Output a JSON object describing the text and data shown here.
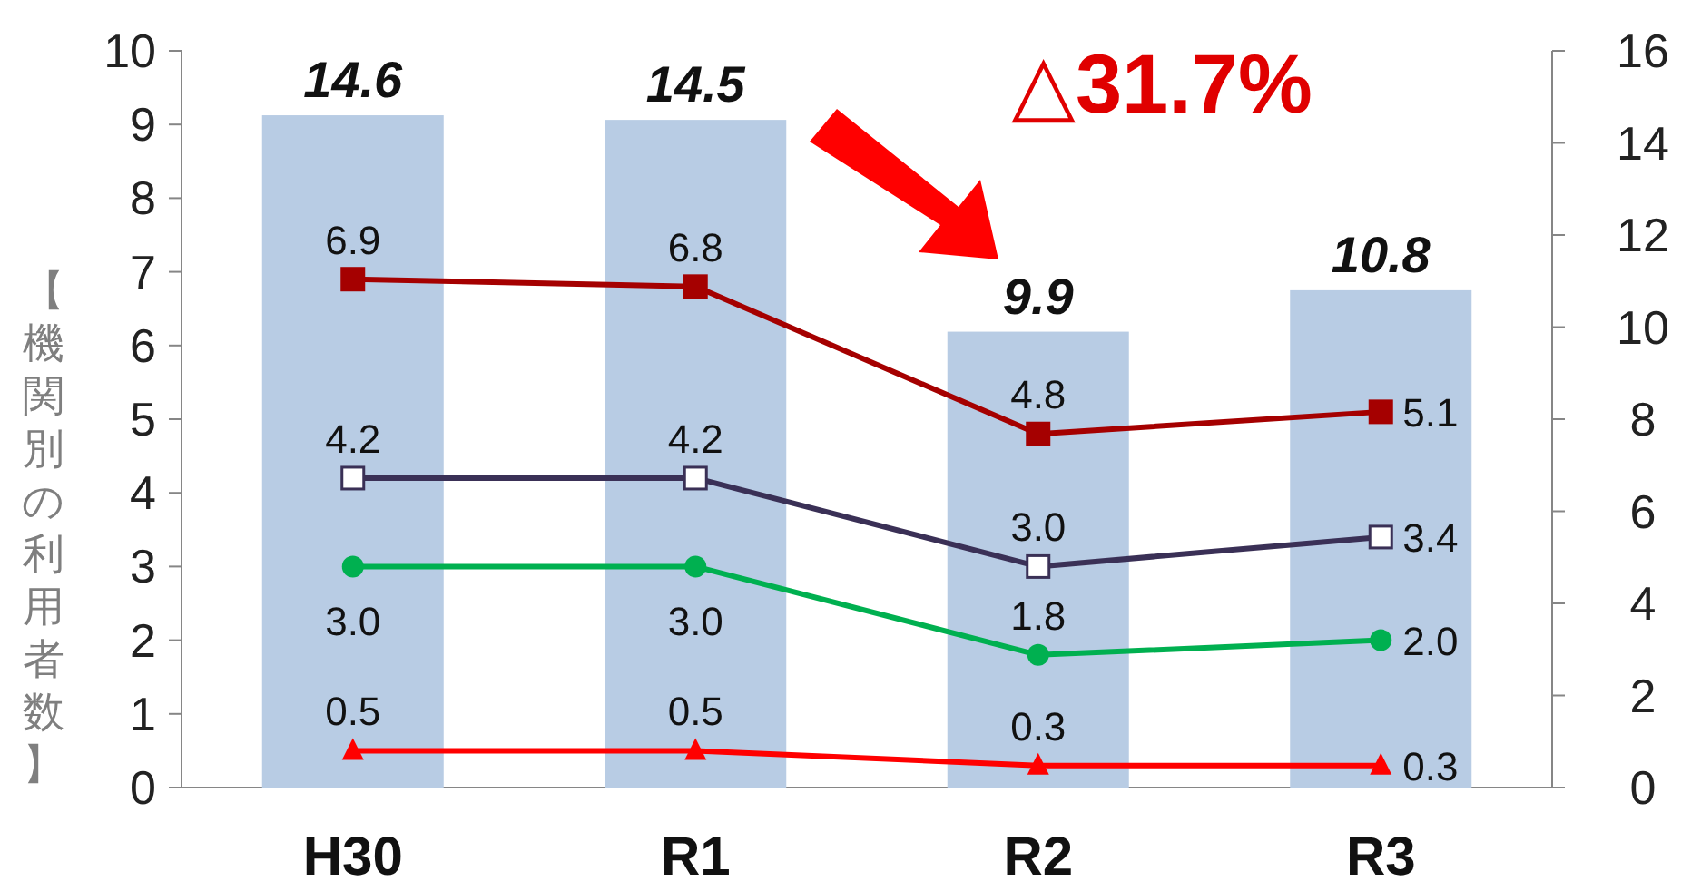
{
  "chart_data": {
    "type": "bar",
    "ylabel": "【機関別の利用者数】",
    "categories": [
      "H30",
      "R1",
      "R2",
      "R3"
    ],
    "series": [
      {
        "axis": "y2",
        "color": "#b8cce4",
        "values": [
          14.6,
          14.5,
          9.9,
          10.8
        ],
        "value_labels": [
          "14.6",
          "14.5",
          "9.9",
          "10.8"
        ]
      },
      {
        "type": "line",
        "axis": "y",
        "color": "#a50000",
        "marker": "square",
        "values": [
          6.9,
          6.8,
          4.8,
          5.1
        ],
        "value_labels": [
          "6.9",
          "6.8",
          "4.8",
          "5.1"
        ]
      },
      {
        "type": "line",
        "axis": "y",
        "color": "#3a3056",
        "marker": "square",
        "values": [
          4.2,
          4.2,
          3.0,
          3.4
        ],
        "value_labels": [
          "4.2",
          "4.2",
          "3.0",
          "3.4"
        ]
      },
      {
        "type": "line",
        "axis": "y",
        "color": "#00b050",
        "marker": "circle",
        "values": [
          3.0,
          3.0,
          1.8,
          2.0
        ],
        "value_labels": [
          "3.0",
          "3.0",
          "1.8",
          "2.0"
        ]
      },
      {
        "type": "line",
        "axis": "y",
        "color": "#ff0000",
        "marker": "triangle",
        "values": [
          0.5,
          0.5,
          0.3,
          0.3
        ],
        "value_labels": [
          "0.5",
          "0.5",
          "0.3",
          "0.3"
        ]
      }
    ],
    "ylim": [
      0,
      10
    ],
    "yticks": [
      0,
      1,
      2,
      3,
      4,
      5,
      6,
      7,
      8,
      9,
      10
    ],
    "y2lim": [
      0,
      16
    ],
    "y2ticks": [
      0,
      2,
      4,
      6,
      8,
      10,
      12,
      14,
      16
    ],
    "annotations": [
      "△31.7%"
    ]
  }
}
